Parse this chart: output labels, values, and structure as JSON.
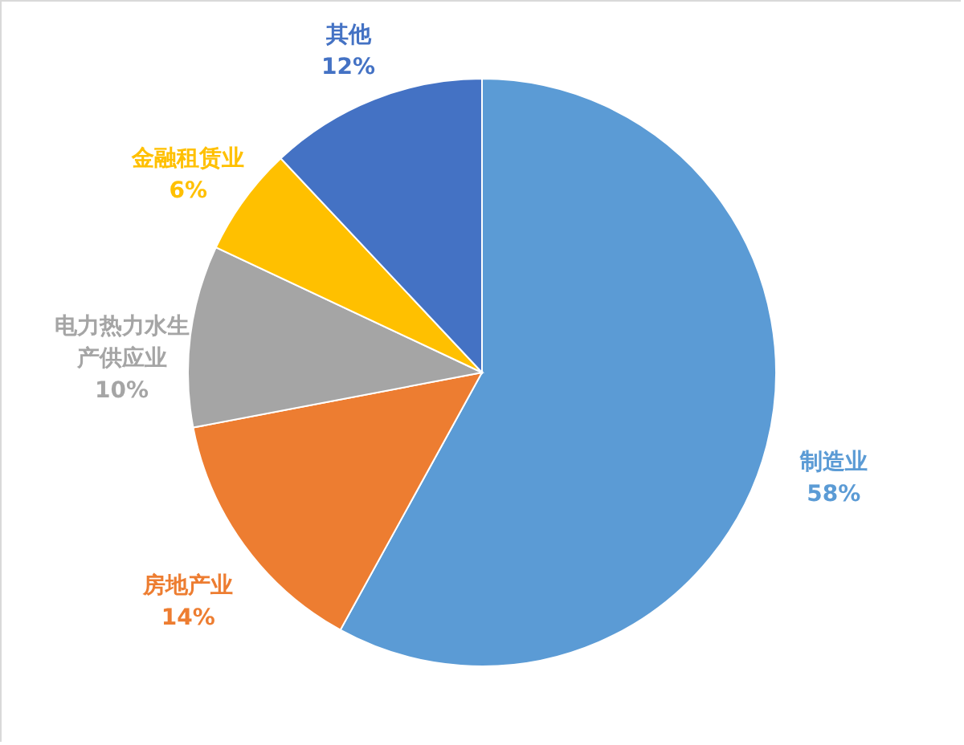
{
  "chart_data": {
    "type": "pie",
    "categories": [
      "制造业",
      "房地产业",
      "电力热力水生产供应业",
      "金融租赁业",
      "其他"
    ],
    "values": [
      58,
      14,
      10,
      6,
      12
    ],
    "colors": [
      "#5b9bd5",
      "#ed7d31",
      "#a5a5a5",
      "#ffc000",
      "#4472c4"
    ],
    "value_labels": [
      "58%",
      "14%",
      "10%",
      "6%",
      "12%"
    ]
  }
}
